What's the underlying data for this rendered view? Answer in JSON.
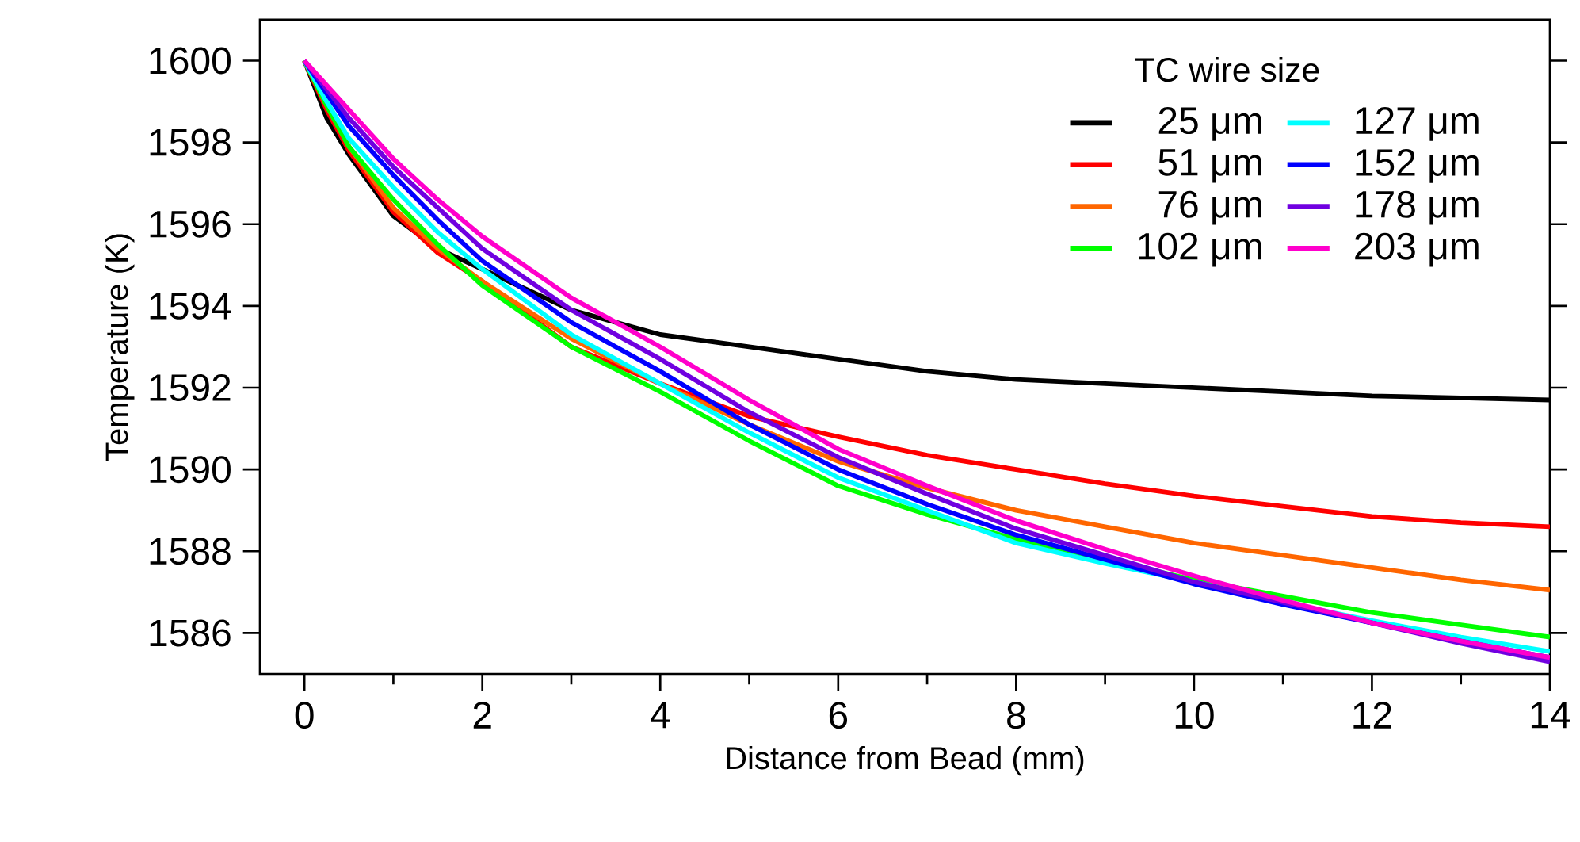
{
  "chart_data": {
    "type": "line",
    "xlabel": "Distance from Bead (mm)",
    "ylabel": "Temperature (K)",
    "legend_title": "TC wire size",
    "legend": "top right",
    "grid": false,
    "marker": "none",
    "line_style": "solid",
    "xlim": [
      -0.5,
      14
    ],
    "ylim": [
      1585,
      1601
    ],
    "xticks": [
      0,
      {
        "value": 1,
        "label": null
      },
      2,
      {
        "value": 3,
        "label": null
      },
      4,
      {
        "value": 5,
        "label": null
      },
      6,
      {
        "value": 7,
        "label": null
      },
      8,
      {
        "value": 9,
        "label": null
      },
      10,
      {
        "value": 11,
        "label": null
      },
      12,
      {
        "value": 13,
        "label": null
      },
      14
    ],
    "yticks": [
      1586,
      1588,
      1590,
      1592,
      1594,
      1596,
      1598,
      1600
    ],
    "x": [
      0,
      0.25,
      0.5,
      1,
      1.5,
      2,
      3,
      4,
      5,
      6,
      7,
      8,
      9,
      10,
      11,
      12,
      13,
      14
    ],
    "series": [
      {
        "name": "25 μm",
        "color": "#000000",
        "values": [
          1600,
          1598.6,
          1597.7,
          1596.2,
          1595.4,
          1594.9,
          1593.9,
          1593.3,
          1593.0,
          1592.7,
          1592.4,
          1592.2,
          1592.1,
          1592.0,
          1591.9,
          1591.8,
          1591.75,
          1591.7
        ]
      },
      {
        "name": "51 μm",
        "color": "#ff0000",
        "values": [
          1600,
          1598.8,
          1597.8,
          1596.3,
          1595.3,
          1594.6,
          1593.0,
          1592.1,
          1591.3,
          1590.8,
          1590.35,
          1590.0,
          1589.65,
          1589.35,
          1589.1,
          1588.85,
          1588.7,
          1588.6
        ]
      },
      {
        "name": "76 μm",
        "color": "#ff6600",
        "values": [
          1600,
          1598.9,
          1597.9,
          1596.4,
          1595.4,
          1594.6,
          1593.2,
          1592.1,
          1591.1,
          1590.2,
          1589.55,
          1589.0,
          1588.6,
          1588.2,
          1587.9,
          1587.6,
          1587.3,
          1587.05
        ]
      },
      {
        "name": "102 μm",
        "color": "#00ff00",
        "values": [
          1600,
          1598.9,
          1597.9,
          1596.6,
          1595.5,
          1594.5,
          1593.0,
          1591.9,
          1590.7,
          1589.6,
          1588.9,
          1588.3,
          1587.8,
          1587.3,
          1586.9,
          1586.5,
          1586.2,
          1585.9
        ]
      },
      {
        "name": "127 μm",
        "color": "#00ffff",
        "values": [
          1600,
          1599.0,
          1598.1,
          1596.9,
          1595.8,
          1594.9,
          1593.3,
          1592.1,
          1590.9,
          1589.8,
          1589.0,
          1588.2,
          1587.7,
          1587.25,
          1586.75,
          1586.3,
          1585.9,
          1585.55
        ]
      },
      {
        "name": "152 μm",
        "color": "#0000ff",
        "values": [
          1600,
          1599.2,
          1598.4,
          1597.2,
          1596.1,
          1595.1,
          1593.6,
          1592.4,
          1591.1,
          1590.0,
          1589.15,
          1588.4,
          1587.8,
          1587.2,
          1586.7,
          1586.25,
          1585.8,
          1585.4
        ]
      },
      {
        "name": "178 μm",
        "color": "#7000e0",
        "values": [
          1600,
          1599.3,
          1598.6,
          1597.4,
          1596.4,
          1595.4,
          1593.9,
          1592.7,
          1591.4,
          1590.3,
          1589.4,
          1588.55,
          1587.9,
          1587.25,
          1586.75,
          1586.25,
          1585.75,
          1585.3
        ]
      },
      {
        "name": "203 μm",
        "color": "#ff00cc",
        "values": [
          1600,
          1599.4,
          1598.8,
          1597.6,
          1596.6,
          1595.7,
          1594.2,
          1593.0,
          1591.7,
          1590.5,
          1589.6,
          1588.75,
          1588.05,
          1587.4,
          1586.8,
          1586.25,
          1585.8,
          1585.4
        ]
      }
    ]
  }
}
